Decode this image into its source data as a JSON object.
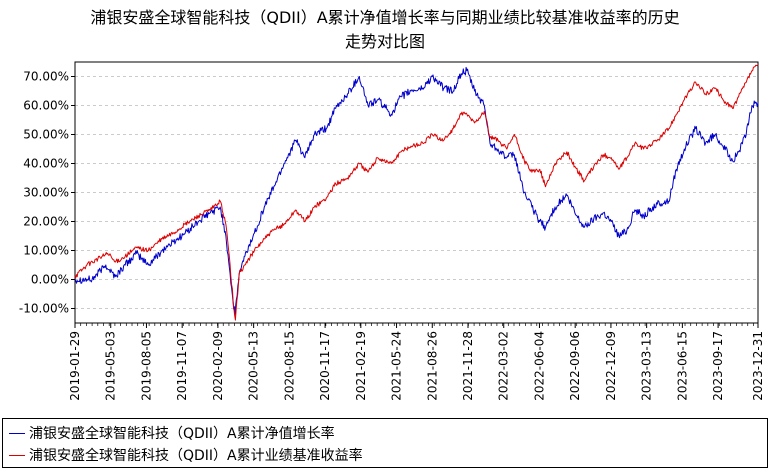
{
  "title_lines": [
    "浦银安盛全球智能科技（QDII）A累计净值增长率与同期业绩比较基准收益率的历史",
    "走势对比图"
  ],
  "chart_data": {
    "type": "line",
    "title": "浦银安盛全球智能科技（QDII）A累计净值增长率与同期业绩比较基准收益率的历史走势对比图",
    "xlabel": "",
    "ylabel": "",
    "ylim": [
      -15,
      75
    ],
    "yticks": [
      -10,
      0,
      10,
      20,
      30,
      40,
      50,
      60,
      70
    ],
    "ytick_labels": [
      "-10.00%",
      "0.00%",
      "10.00%",
      "20.00%",
      "30.00%",
      "40.00%",
      "50.00%",
      "60.00%",
      "70.00%"
    ],
    "xlim": [
      "2019-01-29",
      "2023-12-31"
    ],
    "xticks": [
      "2019-01-29",
      "2019-05-03",
      "2019-08-05",
      "2019-11-07",
      "2020-02-09",
      "2020-05-13",
      "2020-08-15",
      "2020-11-17",
      "2021-02-19",
      "2021-05-24",
      "2021-08-26",
      "2021-11-28",
      "2022-03-02",
      "2022-06-04",
      "2022-09-06",
      "2022-12-09",
      "2023-03-13",
      "2023-06-15",
      "2023-09-17",
      "2023-12-31"
    ],
    "grid": true,
    "legend_position": "bottom",
    "colors": {
      "fund": "#0000cc",
      "benchmark": "#dd0000"
    },
    "series": [
      {
        "name": "浦银安盛全球智能科技（QDII）A累计净值增长率",
        "color": "#0000cc",
        "points": [
          [
            "2019-01-29",
            0
          ],
          [
            "2019-03-15",
            0
          ],
          [
            "2019-04-20",
            5
          ],
          [
            "2019-05-15",
            1
          ],
          [
            "2019-06-10",
            5
          ],
          [
            "2019-07-10",
            9
          ],
          [
            "2019-08-10",
            5
          ],
          [
            "2019-09-15",
            10
          ],
          [
            "2019-10-15",
            13
          ],
          [
            "2019-11-15",
            16
          ],
          [
            "2019-12-20",
            20
          ],
          [
            "2020-01-20",
            23
          ],
          [
            "2020-02-15",
            25
          ],
          [
            "2020-03-01",
            15
          ],
          [
            "2020-03-12",
            2
          ],
          [
            "2020-03-20",
            -8
          ],
          [
            "2020-03-25",
            -12
          ],
          [
            "2020-04-05",
            2
          ],
          [
            "2020-04-20",
            8
          ],
          [
            "2020-05-15",
            16
          ],
          [
            "2020-06-10",
            25
          ],
          [
            "2020-07-05",
            32
          ],
          [
            "2020-08-01",
            40
          ],
          [
            "2020-09-01",
            48
          ],
          [
            "2020-09-25",
            42
          ],
          [
            "2020-10-20",
            50
          ],
          [
            "2020-11-20",
            52
          ],
          [
            "2020-12-15",
            59
          ],
          [
            "2021-01-15",
            64
          ],
          [
            "2021-02-15",
            70
          ],
          [
            "2021-03-10",
            60
          ],
          [
            "2021-04-05",
            62
          ],
          [
            "2021-05-10",
            57
          ],
          [
            "2021-06-05",
            63
          ],
          [
            "2021-07-01",
            65
          ],
          [
            "2021-08-01",
            66
          ],
          [
            "2021-08-26",
            70
          ],
          [
            "2021-09-25",
            66
          ],
          [
            "2021-10-20",
            65
          ],
          [
            "2021-11-10",
            71
          ],
          [
            "2021-11-25",
            72
          ],
          [
            "2021-12-15",
            65
          ],
          [
            "2022-01-10",
            60
          ],
          [
            "2022-01-25",
            47
          ],
          [
            "2022-02-15",
            45
          ],
          [
            "2022-03-10",
            42
          ],
          [
            "2022-03-30",
            43
          ],
          [
            "2022-04-25",
            30
          ],
          [
            "2022-05-15",
            25
          ],
          [
            "2022-06-05",
            20
          ],
          [
            "2022-06-20",
            18
          ],
          [
            "2022-07-15",
            25
          ],
          [
            "2022-08-15",
            29
          ],
          [
            "2022-09-05",
            23
          ],
          [
            "2022-09-30",
            18
          ],
          [
            "2022-10-25",
            21
          ],
          [
            "2022-11-20",
            23
          ],
          [
            "2022-12-10",
            20
          ],
          [
            "2022-12-30",
            15
          ],
          [
            "2023-01-20",
            17
          ],
          [
            "2023-02-10",
            24
          ],
          [
            "2023-03-05",
            22
          ],
          [
            "2023-04-10",
            26
          ],
          [
            "2023-05-10",
            27
          ],
          [
            "2023-05-30",
            38
          ],
          [
            "2023-06-20",
            45
          ],
          [
            "2023-07-20",
            52
          ],
          [
            "2023-08-15",
            47
          ],
          [
            "2023-09-10",
            50
          ],
          [
            "2023-09-30",
            46
          ],
          [
            "2023-10-25",
            41
          ],
          [
            "2023-11-10",
            44
          ],
          [
            "2023-11-30",
            50
          ],
          [
            "2023-12-15",
            60
          ],
          [
            "2023-12-31",
            61
          ]
        ]
      },
      {
        "name": "浦银安盛全球智能科技（QDII）A累计业绩基准收益率",
        "color": "#dd0000",
        "points": [
          [
            "2019-01-29",
            1
          ],
          [
            "2019-03-01",
            5
          ],
          [
            "2019-04-25",
            9
          ],
          [
            "2019-05-15",
            6
          ],
          [
            "2019-06-10",
            8
          ],
          [
            "2019-07-10",
            11
          ],
          [
            "2019-08-10",
            10
          ],
          [
            "2019-09-15",
            14
          ],
          [
            "2019-10-15",
            16
          ],
          [
            "2019-11-15",
            19
          ],
          [
            "2019-12-20",
            22
          ],
          [
            "2020-01-20",
            24
          ],
          [
            "2020-02-15",
            27
          ],
          [
            "2020-03-01",
            19
          ],
          [
            "2020-03-12",
            5
          ],
          [
            "2020-03-22",
            -10
          ],
          [
            "2020-03-26",
            -14
          ],
          [
            "2020-04-05",
            2
          ],
          [
            "2020-04-20",
            5
          ],
          [
            "2020-05-15",
            10
          ],
          [
            "2020-06-10",
            14
          ],
          [
            "2020-07-05",
            17
          ],
          [
            "2020-08-01",
            19
          ],
          [
            "2020-09-01",
            24
          ],
          [
            "2020-09-25",
            20
          ],
          [
            "2020-10-20",
            25
          ],
          [
            "2020-11-20",
            28
          ],
          [
            "2020-12-15",
            33
          ],
          [
            "2021-01-15",
            35
          ],
          [
            "2021-02-15",
            40
          ],
          [
            "2021-03-10",
            37
          ],
          [
            "2021-04-05",
            42
          ],
          [
            "2021-05-10",
            40
          ],
          [
            "2021-06-05",
            44
          ],
          [
            "2021-07-01",
            46
          ],
          [
            "2021-08-01",
            47
          ],
          [
            "2021-08-26",
            50
          ],
          [
            "2021-09-25",
            48
          ],
          [
            "2021-10-20",
            52
          ],
          [
            "2021-11-10",
            57
          ],
          [
            "2021-11-25",
            57
          ],
          [
            "2021-12-15",
            54
          ],
          [
            "2022-01-10",
            58
          ],
          [
            "2022-01-25",
            49
          ],
          [
            "2022-02-15",
            48
          ],
          [
            "2022-03-10",
            45
          ],
          [
            "2022-03-30",
            50
          ],
          [
            "2022-04-25",
            41
          ],
          [
            "2022-05-15",
            37
          ],
          [
            "2022-06-05",
            38
          ],
          [
            "2022-06-20",
            32
          ],
          [
            "2022-07-15",
            40
          ],
          [
            "2022-08-15",
            44
          ],
          [
            "2022-09-05",
            39
          ],
          [
            "2022-09-30",
            34
          ],
          [
            "2022-10-25",
            39
          ],
          [
            "2022-11-20",
            43
          ],
          [
            "2022-12-10",
            42
          ],
          [
            "2022-12-30",
            38
          ],
          [
            "2023-01-20",
            42
          ],
          [
            "2023-02-10",
            47
          ],
          [
            "2023-03-05",
            45
          ],
          [
            "2023-04-10",
            48
          ],
          [
            "2023-05-10",
            52
          ],
          [
            "2023-05-30",
            57
          ],
          [
            "2023-06-20",
            62
          ],
          [
            "2023-07-20",
            68
          ],
          [
            "2023-08-15",
            64
          ],
          [
            "2023-09-10",
            66
          ],
          [
            "2023-09-30",
            62
          ],
          [
            "2023-10-25",
            59
          ],
          [
            "2023-11-10",
            63
          ],
          [
            "2023-11-30",
            68
          ],
          [
            "2023-12-15",
            72
          ],
          [
            "2023-12-31",
            74
          ]
        ]
      }
    ]
  },
  "legend": {
    "items": [
      {
        "label": "浦银安盛全球智能科技（QDII）A累计净值增长率",
        "color": "#0000cc"
      },
      {
        "label": "浦银安盛全球智能科技（QDII）A累计业绩基准收益率",
        "color": "#dd0000"
      }
    ]
  }
}
